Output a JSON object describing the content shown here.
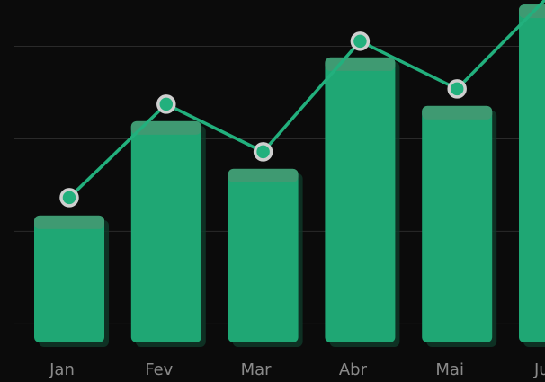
{
  "chart_data": {
    "type": "bar_line",
    "categories": [
      "Jan",
      "Fev",
      "Mar",
      "Abr",
      "Mai",
      "Jun"
    ],
    "series": [
      {
        "type": "bar",
        "color": "#1fa774",
        "values": [
          43.4,
          63.8,
          53.5,
          77.6,
          67.1,
          89
        ]
      },
      {
        "type": "line",
        "color": "#22b07d",
        "values": [
          47.3,
          67.5,
          57.2,
          81.1,
          70.8,
          92
        ]
      }
    ],
    "ylim": [
      16,
      90
    ],
    "yticks": [
      20,
      40,
      60,
      80
    ],
    "grid": true
  }
}
